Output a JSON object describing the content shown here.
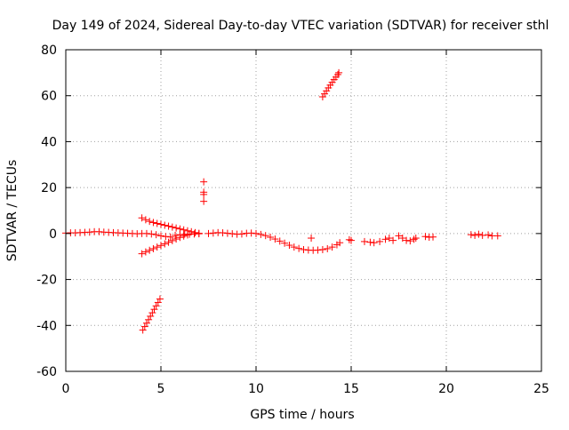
{
  "chart_data": {
    "type": "scatter",
    "title": "Day 149 of 2024, Sidereal Day-to-day VTEC variation (SDTVAR) for receiver sthl",
    "xlabel": "GPS time / hours",
    "ylabel": "SDTVAR / TECUs",
    "xlim": [
      0,
      25
    ],
    "ylim": [
      -60,
      80
    ],
    "xticks": [
      "0",
      "5",
      "10",
      "15",
      "20",
      "25"
    ],
    "yticks": [
      "-60",
      "-40",
      "-20",
      "0",
      "20",
      "40",
      "60",
      "80"
    ],
    "grid": true,
    "marker": "+",
    "color": "#ff0000",
    "series": [
      {
        "name": "SDTVAR",
        "points": [
          [
            0.0,
            0.2
          ],
          [
            0.25,
            0.3
          ],
          [
            0.5,
            0.3
          ],
          [
            0.75,
            0.4
          ],
          [
            1.0,
            0.5
          ],
          [
            1.25,
            0.6
          ],
          [
            1.5,
            0.8
          ],
          [
            1.75,
            0.8
          ],
          [
            2.0,
            0.6
          ],
          [
            2.25,
            0.5
          ],
          [
            2.5,
            0.4
          ],
          [
            2.75,
            0.3
          ],
          [
            3.0,
            0.2
          ],
          [
            3.25,
            0.1
          ],
          [
            3.5,
            0.0
          ],
          [
            3.75,
            -0.1
          ],
          [
            4.0,
            0.0
          ],
          [
            4.25,
            0.0
          ],
          [
            4.5,
            -0.2
          ],
          [
            4.75,
            -0.5
          ],
          [
            5.0,
            -1.0
          ],
          [
            5.25,
            -1.3
          ],
          [
            5.5,
            -1.5
          ],
          [
            5.75,
            -0.8
          ],
          [
            6.0,
            -0.5
          ],
          [
            6.25,
            -0.3
          ],
          [
            6.5,
            -0.3
          ],
          [
            6.75,
            -0.2
          ],
          [
            7.0,
            -0.1
          ],
          [
            4.0,
            6.8
          ],
          [
            4.2,
            6.0
          ],
          [
            4.4,
            5.3
          ],
          [
            4.6,
            4.8
          ],
          [
            4.8,
            4.4
          ],
          [
            5.0,
            4.0
          ],
          [
            5.2,
            3.6
          ],
          [
            5.4,
            3.2
          ],
          [
            5.6,
            2.8
          ],
          [
            5.8,
            2.4
          ],
          [
            6.0,
            2.0
          ],
          [
            6.2,
            1.6
          ],
          [
            6.4,
            1.2
          ],
          [
            6.6,
            0.8
          ],
          [
            6.8,
            0.4
          ],
          [
            7.0,
            0.1
          ],
          [
            4.0,
            -8.8
          ],
          [
            4.2,
            -8.0
          ],
          [
            4.4,
            -7.3
          ],
          [
            4.6,
            -6.6
          ],
          [
            4.8,
            -5.9
          ],
          [
            5.0,
            -5.2
          ],
          [
            5.2,
            -4.5
          ],
          [
            5.4,
            -3.8
          ],
          [
            5.6,
            -3.1
          ],
          [
            5.8,
            -2.4
          ],
          [
            6.0,
            -1.7
          ],
          [
            6.2,
            -1.1
          ],
          [
            6.4,
            -0.6
          ],
          [
            4.05,
            -42.0
          ],
          [
            4.15,
            -40.5
          ],
          [
            4.25,
            -39.0
          ],
          [
            4.35,
            -37.5
          ],
          [
            4.45,
            -36.0
          ],
          [
            4.55,
            -34.5
          ],
          [
            4.65,
            -33.0
          ],
          [
            4.75,
            -31.5
          ],
          [
            4.85,
            -30.0
          ],
          [
            4.95,
            -28.5
          ],
          [
            7.25,
            22.5
          ],
          [
            7.25,
            18.0
          ],
          [
            7.25,
            17.0
          ],
          [
            7.25,
            14.0
          ],
          [
            7.5,
            0.0
          ],
          [
            7.75,
            0.2
          ],
          [
            8.0,
            0.4
          ],
          [
            8.25,
            0.3
          ],
          [
            8.5,
            0.1
          ],
          [
            8.75,
            -0.1
          ],
          [
            9.0,
            -0.3
          ],
          [
            9.25,
            -0.2
          ],
          [
            9.5,
            0.1
          ],
          [
            9.75,
            0.2
          ],
          [
            10.0,
            0.0
          ],
          [
            10.25,
            -0.4
          ],
          [
            10.5,
            -0.9
          ],
          [
            10.75,
            -1.6
          ],
          [
            11.0,
            -2.4
          ],
          [
            11.25,
            -3.3
          ],
          [
            11.5,
            -4.2
          ],
          [
            11.75,
            -5.1
          ],
          [
            12.0,
            -5.9
          ],
          [
            12.25,
            -6.5
          ],
          [
            12.5,
            -7.0
          ],
          [
            12.75,
            -7.2
          ],
          [
            13.0,
            -7.3
          ],
          [
            13.25,
            -7.2
          ],
          [
            13.5,
            -7.0
          ],
          [
            13.75,
            -6.6
          ],
          [
            14.0,
            -5.9
          ],
          [
            14.25,
            -4.9
          ],
          [
            14.4,
            -4.0
          ],
          [
            12.9,
            -2.0
          ],
          [
            13.5,
            59.5
          ],
          [
            13.6,
            60.8
          ],
          [
            13.7,
            62.1
          ],
          [
            13.8,
            63.4
          ],
          [
            13.9,
            64.6
          ],
          [
            14.0,
            65.8
          ],
          [
            14.1,
            67.0
          ],
          [
            14.2,
            68.1
          ],
          [
            14.3,
            69.2
          ],
          [
            14.35,
            70.0
          ],
          [
            14.9,
            -2.7
          ],
          [
            15.0,
            -3.0
          ],
          [
            15.7,
            -3.5
          ],
          [
            16.0,
            -3.8
          ],
          [
            16.2,
            -4.0
          ],
          [
            16.5,
            -3.5
          ],
          [
            16.8,
            -2.5
          ],
          [
            17.0,
            -2.0
          ],
          [
            17.2,
            -3.0
          ],
          [
            17.5,
            -1.0
          ],
          [
            17.7,
            -2.0
          ],
          [
            17.9,
            -3.0
          ],
          [
            18.1,
            -3.2
          ],
          [
            18.3,
            -2.5
          ],
          [
            18.4,
            -2.0
          ],
          [
            18.9,
            -1.3
          ],
          [
            19.1,
            -1.6
          ],
          [
            19.3,
            -1.5
          ],
          [
            21.3,
            -0.5
          ],
          [
            21.5,
            -0.8
          ],
          [
            21.7,
            -0.3
          ],
          [
            21.9,
            -0.8
          ],
          [
            22.2,
            -0.6
          ],
          [
            22.4,
            -1.0
          ],
          [
            22.7,
            -1.0
          ]
        ]
      }
    ]
  }
}
